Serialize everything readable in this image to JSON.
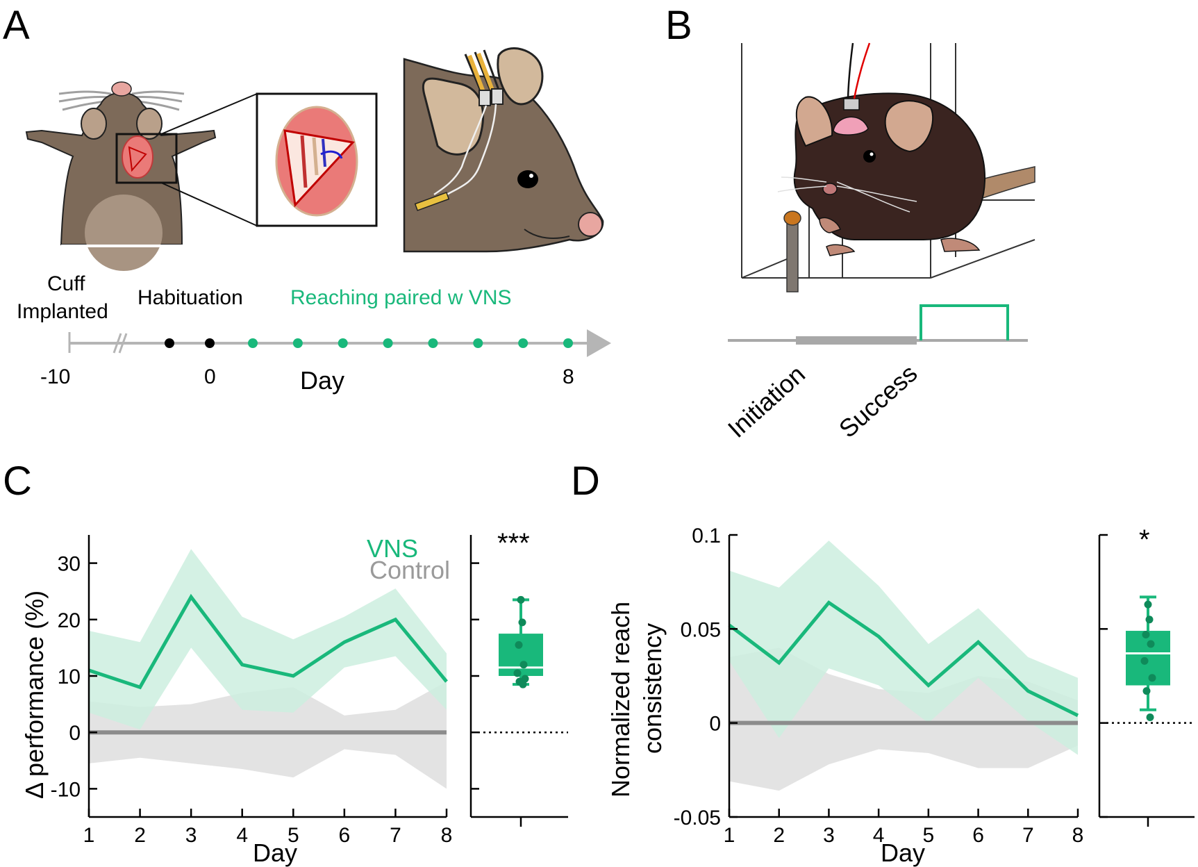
{
  "colors": {
    "vns": "#19b87b",
    "vns_fill": "#cdeedf",
    "control": "#8c8c8c",
    "control_fill": "#e0e0e0",
    "box_fill": "#19b87b",
    "box_dot": "#0f8a5a"
  },
  "panel_labels": {
    "a": "A",
    "b": "B",
    "c": "C",
    "d": "D"
  },
  "panel_a": {
    "timeline": {
      "cuff_label_line1": "Cuff",
      "cuff_label_line2": "Implanted",
      "habituation_label": "Habituation",
      "reaching_label": "Reaching paired w VNS",
      "tick_start": "-10",
      "tick_zero": "0",
      "tick_end": "8",
      "axis_label": "Day",
      "black_days": [
        -2,
        0
      ],
      "green_days": [
        1,
        2,
        3,
        4,
        5,
        6,
        7,
        8
      ]
    }
  },
  "panel_b": {
    "initiation_label": "Initiation",
    "success_label": "Success"
  },
  "chart_data": [
    {
      "type": "line",
      "panel": "C",
      "ylabel": "Δ performance (%)",
      "xlabel": "Day",
      "x": [
        1,
        2,
        3,
        4,
        5,
        6,
        7,
        8
      ],
      "xlim": [
        1,
        8
      ],
      "ylim": [
        -15,
        35
      ],
      "yticks": [
        -10,
        0,
        10,
        20,
        30
      ],
      "xticks": [
        1,
        2,
        3,
        4,
        5,
        6,
        7,
        8
      ],
      "legend_position": "top-right",
      "series": [
        {
          "name": "VNS",
          "values": [
            11,
            8,
            24,
            12,
            10,
            16,
            20,
            9
          ],
          "upper": [
            18,
            16,
            32.5,
            20.5,
            16.5,
            20.5,
            25.5,
            14
          ],
          "lower": [
            3.5,
            0.5,
            15,
            4,
            3.5,
            11.5,
            13.5,
            4
          ]
        },
        {
          "name": "Control",
          "values": [
            0,
            0,
            0,
            0,
            0,
            0,
            0,
            0
          ],
          "upper": [
            5.5,
            4.5,
            5,
            7,
            8,
            3,
            4,
            9
          ],
          "lower": [
            -5.5,
            -4.5,
            -5.5,
            -6.5,
            -8,
            -3,
            -4,
            -10
          ]
        }
      ],
      "inset": {
        "type": "box",
        "significance": "***",
        "median": 11.5,
        "q1": 10,
        "q3": 17.5,
        "whisker_low": 8.5,
        "whisker_high": 23.5,
        "points": [
          23.5,
          19.5,
          15.5,
          12,
          10.5,
          9.5,
          9,
          8.5
        ],
        "reference": 0
      }
    },
    {
      "type": "line",
      "panel": "D",
      "ylabel_line1": "Normalized reach",
      "ylabel_line2": "consistency",
      "xlabel": "Day",
      "x": [
        1,
        2,
        3,
        4,
        5,
        6,
        7,
        8
      ],
      "xlim": [
        1,
        8
      ],
      "ylim": [
        -0.05,
        0.1
      ],
      "yticks": [
        -0.05,
        0,
        0.05,
        0.1
      ],
      "ytick_labels": [
        "-0.05",
        "0",
        "0.05",
        "0.1"
      ],
      "xticks": [
        1,
        2,
        3,
        4,
        5,
        6,
        7,
        8
      ],
      "series": [
        {
          "name": "VNS",
          "values": [
            0.052,
            0.032,
            0.064,
            0.046,
            0.02,
            0.043,
            0.017,
            0.004
          ],
          "upper": [
            0.081,
            0.072,
            0.097,
            0.073,
            0.042,
            0.061,
            0.035,
            0.024
          ],
          "lower": [
            0.033,
            -0.008,
            0.029,
            0.02,
            0.0,
            0.024,
            0.001,
            -0.017
          ]
        },
        {
          "name": "Control",
          "values": [
            0,
            0,
            0,
            0,
            0,
            0,
            0,
            0
          ],
          "upper": [
            0.035,
            0.04,
            0.026,
            0.018,
            0.016,
            0.025,
            0.022,
            0.012
          ],
          "lower": [
            -0.031,
            -0.036,
            -0.022,
            -0.014,
            -0.016,
            -0.024,
            -0.024,
            -0.012
          ]
        }
      ],
      "inset": {
        "type": "box",
        "significance": "*",
        "median": 0.037,
        "q1": 0.02,
        "q3": 0.049,
        "whisker_low": 0.007,
        "whisker_high": 0.067,
        "points": [
          0.063,
          0.055,
          0.047,
          0.042,
          0.033,
          0.024,
          0.017,
          0.003
        ],
        "reference": 0
      }
    }
  ]
}
